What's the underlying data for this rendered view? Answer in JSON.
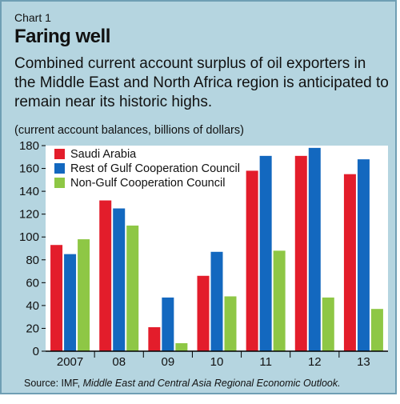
{
  "chart_data": {
    "type": "bar",
    "kicker": "Chart 1",
    "title": "Faring well",
    "subtitle": "Combined current account surplus of oil exporters in the Middle East and North Africa region is anticipated to remain near its historic highs.",
    "units": "(current account balances, billions of dollars)",
    "categories": [
      "2007",
      "08",
      "09",
      "10",
      "11",
      "12",
      "13"
    ],
    "series": [
      {
        "name": "Saudi Arabia",
        "color": "#e31d2b",
        "values": [
          93,
          132,
          21,
          66,
          158,
          171,
          155
        ]
      },
      {
        "name": "Rest of Gulf Cooperation Council",
        "color": "#1368bf",
        "values": [
          85,
          125,
          47,
          87,
          171,
          178,
          168
        ]
      },
      {
        "name": "Non-Gulf Cooperation Council",
        "color": "#8ec745",
        "values": [
          98,
          110,
          7,
          48,
          88,
          47,
          37
        ]
      }
    ],
    "ylim": [
      0,
      180
    ],
    "yticks": [
      0,
      20,
      40,
      60,
      80,
      100,
      120,
      140,
      160,
      180
    ],
    "legend_position": "top-left",
    "source_prefix": "Source: IMF, ",
    "source_title": "Middle East and Central Asia Regional Economic Outlook."
  }
}
